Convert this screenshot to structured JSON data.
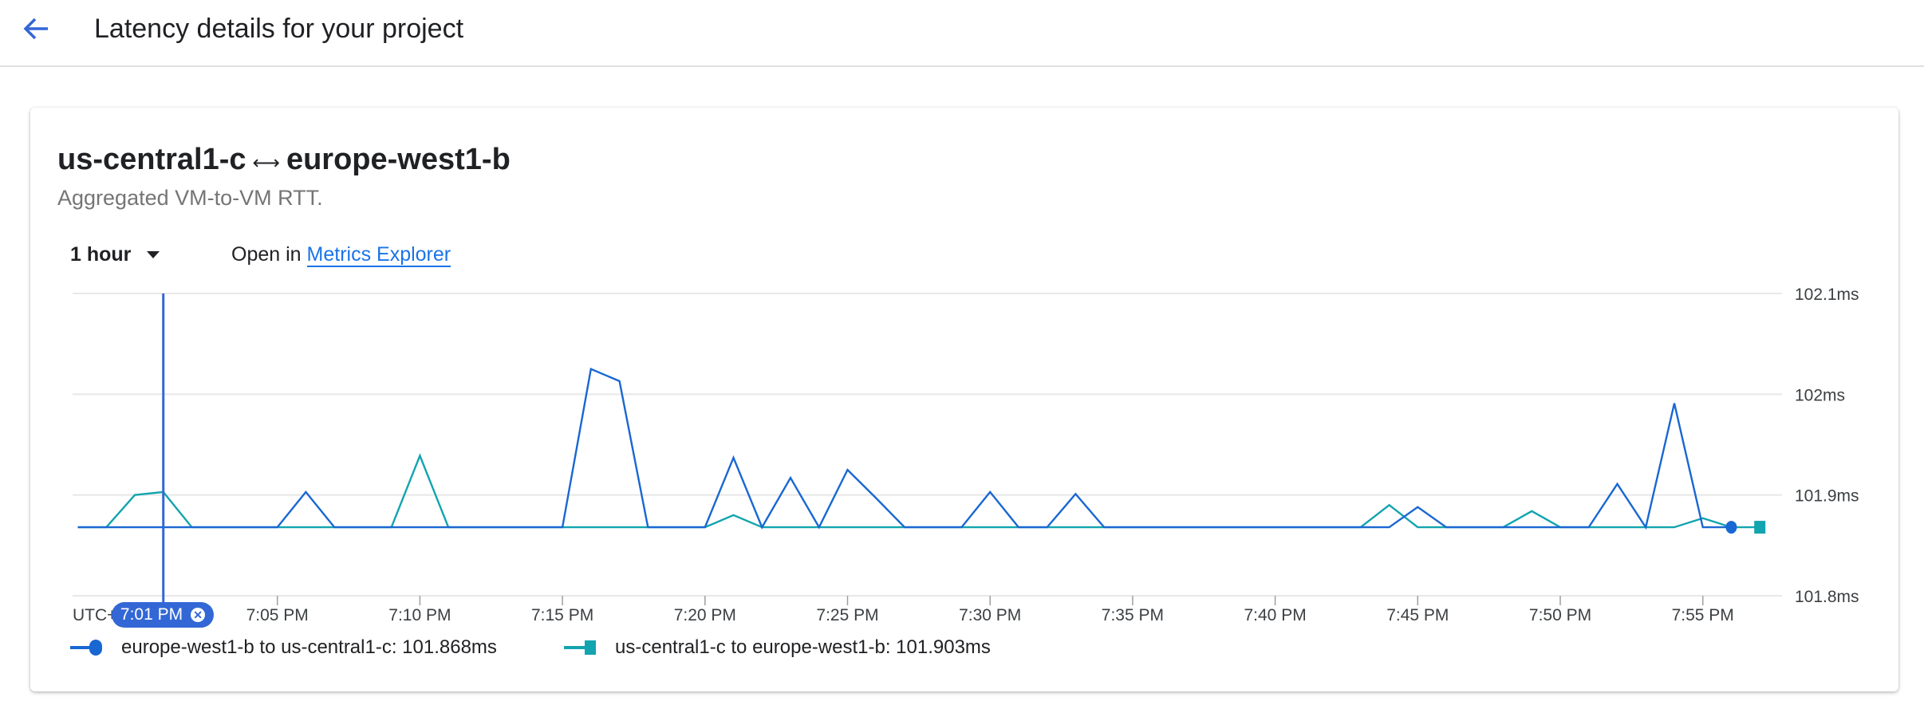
{
  "header": {
    "title": "Latency details for your project",
    "back_icon": "arrow-back-icon"
  },
  "card": {
    "title_left": "us-central1-c",
    "title_arrow": "⟷",
    "title_right": "europe-west1-b",
    "subtitle": "Aggregated VM-to-VM RTT.",
    "range_label": "1 hour",
    "open_in_label": "Open in",
    "open_in_link": "Metrics Explorer"
  },
  "colors": {
    "blue": "#1967d2",
    "teal": "#12a4af",
    "accent": "#3367d6",
    "link": "#1a73e8"
  },
  "cursor": {
    "label": "7:01 PM",
    "close_icon": "close-circle-icon"
  },
  "chart_data": {
    "type": "line",
    "title": "",
    "xlabel": "",
    "ylabel": "",
    "ylim": [
      101.8,
      102.1
    ],
    "y_ticks": [
      "101.8ms",
      "101.9ms",
      "102ms",
      "102.1ms"
    ],
    "y_tick_values": [
      101.8,
      101.9,
      102.0,
      102.1
    ],
    "x_tick_labels": [
      "UTC+",
      "7:05 PM",
      "7:10 PM",
      "7:15 PM",
      "7:20 PM",
      "7:25 PM",
      "7:30 PM",
      "7:35 PM",
      "7:40 PM",
      "7:45 PM",
      "7:50 PM",
      "7:55 PM"
    ],
    "grid": true,
    "legend_position": "bottom",
    "x": [
      "6:58 PM",
      "6:59 PM",
      "7:00 PM",
      "7:01 PM",
      "7:02 PM",
      "7:03 PM",
      "7:04 PM",
      "7:05 PM",
      "7:06 PM",
      "7:07 PM",
      "7:08 PM",
      "7:09 PM",
      "7:10 PM",
      "7:11 PM",
      "7:12 PM",
      "7:13 PM",
      "7:14 PM",
      "7:15 PM",
      "7:16 PM",
      "7:17 PM",
      "7:18 PM",
      "7:19 PM",
      "7:20 PM",
      "7:21 PM",
      "7:22 PM",
      "7:23 PM",
      "7:24 PM",
      "7:25 PM",
      "7:26 PM",
      "7:27 PM",
      "7:28 PM",
      "7:29 PM",
      "7:30 PM",
      "7:31 PM",
      "7:32 PM",
      "7:33 PM",
      "7:34 PM",
      "7:35 PM",
      "7:36 PM",
      "7:37 PM",
      "7:38 PM",
      "7:39 PM",
      "7:40 PM",
      "7:41 PM",
      "7:42 PM",
      "7:43 PM",
      "7:44 PM",
      "7:45 PM",
      "7:46 PM",
      "7:47 PM",
      "7:48 PM",
      "7:49 PM",
      "7:50 PM",
      "7:51 PM",
      "7:52 PM",
      "7:53 PM",
      "7:54 PM",
      "7:55 PM",
      "7:56 PM",
      "7:57 PM"
    ],
    "series": [
      {
        "name": "europe-west1-b to us-central1-c",
        "current": "101.868ms",
        "color": "#1967d2",
        "marker": "circle",
        "values": [
          101.868,
          101.868,
          101.868,
          101.868,
          101.868,
          101.868,
          101.868,
          101.868,
          101.903,
          101.868,
          101.868,
          101.868,
          101.868,
          101.868,
          101.868,
          101.868,
          101.868,
          101.868,
          102.025,
          102.013,
          101.868,
          101.868,
          101.868,
          101.937,
          101.868,
          101.917,
          101.868,
          101.925,
          101.897,
          101.868,
          101.868,
          101.868,
          101.903,
          101.868,
          101.868,
          101.901,
          101.868,
          101.868,
          101.868,
          101.868,
          101.868,
          101.868,
          101.868,
          101.868,
          101.868,
          101.868,
          101.868,
          101.888,
          101.868,
          101.868,
          101.868,
          101.868,
          101.868,
          101.868,
          101.911,
          101.868,
          101.991,
          101.868,
          101.868,
          null
        ]
      },
      {
        "name": "us-central1-c to europe-west1-b",
        "current": "101.903ms",
        "color": "#12a4af",
        "marker": "square",
        "values": [
          101.868,
          101.868,
          101.9,
          101.903,
          101.868,
          101.868,
          101.868,
          101.868,
          101.868,
          101.868,
          101.868,
          101.868,
          101.939,
          101.868,
          101.868,
          101.868,
          101.868,
          101.868,
          101.868,
          101.868,
          101.868,
          101.868,
          101.868,
          101.88,
          101.868,
          101.868,
          101.868,
          101.868,
          101.868,
          101.868,
          101.868,
          101.868,
          101.868,
          101.868,
          101.868,
          101.868,
          101.868,
          101.868,
          101.868,
          101.868,
          101.868,
          101.868,
          101.868,
          101.868,
          101.868,
          101.868,
          101.89,
          101.868,
          101.868,
          101.868,
          101.868,
          101.884,
          101.868,
          101.868,
          101.868,
          101.868,
          101.868,
          101.877,
          101.868,
          101.868
        ]
      }
    ],
    "cursor_x": "7:01 PM"
  }
}
